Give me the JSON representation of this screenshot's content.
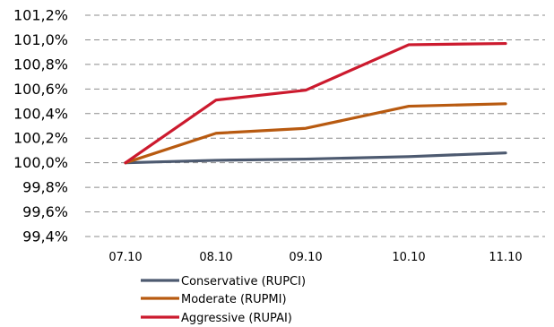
{
  "chart_data": {
    "type": "line",
    "title": "",
    "xlabel": "",
    "ylabel": "",
    "categories": [
      "07.10",
      "08.10",
      "09.10",
      "10.10",
      "11.10"
    ],
    "ylim": [
      99.4,
      101.2
    ],
    "yticks": [
      99.4,
      99.6,
      99.8,
      100.0,
      100.2,
      100.4,
      100.6,
      100.8,
      101.0,
      101.2
    ],
    "ytick_labels": [
      "99,4%",
      "99,6%",
      "99,8%",
      "100,0%",
      "100,2%",
      "100,4%",
      "100,6%",
      "100,8%",
      "101,0%",
      "101,2%"
    ],
    "grid": "horizontal dashed",
    "legend_position": "bottom",
    "series": [
      {
        "name": "Conservative (RUPCI)",
        "color": "#4d5a70",
        "values": [
          100.0,
          100.02,
          100.03,
          100.05,
          100.08
        ]
      },
      {
        "name": "Moderate (RUPMI)",
        "color": "#b85a10",
        "values": [
          100.0,
          100.24,
          100.28,
          100.46,
          100.48
        ]
      },
      {
        "name": "Aggressive (RUPAI)",
        "color": "#cc1a2e",
        "values": [
          100.0,
          100.51,
          100.59,
          100.96,
          100.97
        ]
      }
    ]
  }
}
